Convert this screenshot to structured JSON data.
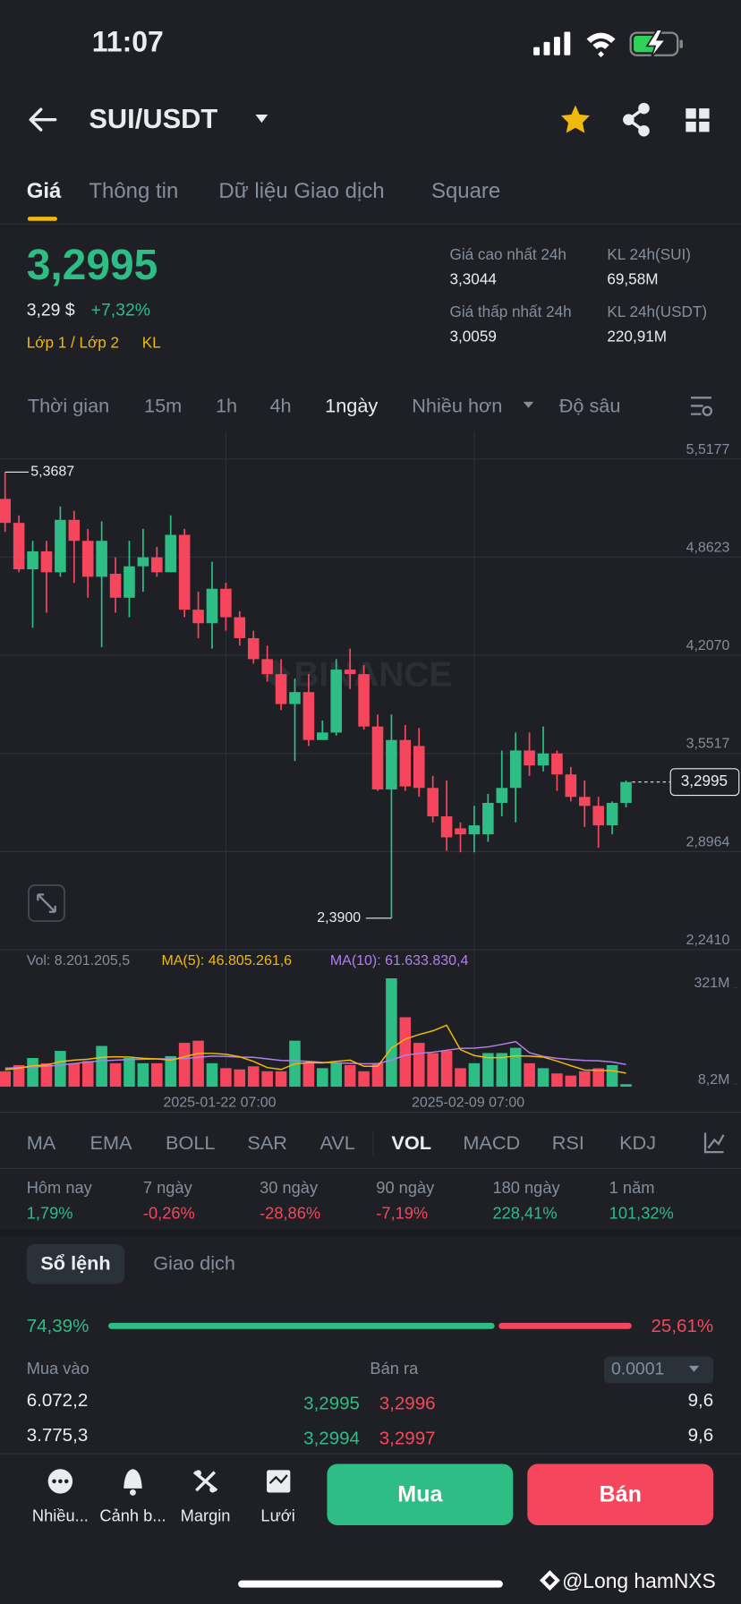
{
  "status_bar": {
    "time": "11:07"
  },
  "header": {
    "pair": "SUI/USDT"
  },
  "tabs": [
    "Giá",
    "Thông tin",
    "Dữ liệu Giao dịch",
    "Square"
  ],
  "price": {
    "last": "3,2995",
    "usd": "3,29 $",
    "change": "+7,32%",
    "tags": [
      "Lớp 1 / Lớp 2",
      "KL"
    ]
  },
  "stats": [
    {
      "label": "Giá cao nhất 24h",
      "value": "3,3044"
    },
    {
      "label": "KL 24h(SUI)",
      "value": "69,58M"
    },
    {
      "label": "Giá thấp nhất 24h",
      "value": "3,0059"
    },
    {
      "label": "KL 24h(USDT)",
      "value": "220,91M"
    }
  ],
  "intervals": [
    "Thời gian",
    "15m",
    "1h",
    "4h",
    "1ngày",
    "Nhiều hơn",
    "Độ sâu"
  ],
  "chart": {
    "type": "candlestick",
    "colors": {
      "up": "#2EBD85",
      "down": "#F6465D"
    },
    "watermark": "BINANCE",
    "open": [
      5.19,
      5.03,
      4.72,
      4.84,
      4.7,
      5.05,
      4.91,
      4.67,
      4.69,
      4.53,
      4.74,
      4.8,
      4.7,
      4.95,
      4.45,
      4.36,
      4.59,
      4.4,
      4.26,
      4.12,
      4.02,
      3.82,
      3.9,
      3.58,
      3.63,
      4.05,
      4.02,
      3.67,
      3.25,
      3.58,
      3.54,
      3.26,
      3.07,
      2.99,
      2.95,
      2.95,
      3.16,
      3.26,
      3.51,
      3.41,
      3.49,
      3.35,
      3.2,
      3.14,
      3.01,
      3.16
    ],
    "high": [
      5.3687,
      5.08,
      4.91,
      4.91,
      5.14,
      5.11,
      4.99,
      5.04,
      4.8,
      4.91,
      4.99,
      4.87,
      5.08,
      4.99,
      4.57,
      4.77,
      4.63,
      4.44,
      4.31,
      4.21,
      4.12,
      3.99,
      4.02,
      3.71,
      4.12,
      4.19,
      4.08,
      3.75,
      3.75,
      3.68,
      3.66,
      3.34,
      3.31,
      3.03,
      3.14,
      3.22,
      3.51,
      3.63,
      3.63,
      3.67,
      3.51,
      3.4,
      3.31,
      3.2,
      3.17,
      3.31
    ],
    "low": [
      4.97,
      4.7,
      4.33,
      4.43,
      4.67,
      4.63,
      4.53,
      4.2,
      4.43,
      4.4,
      4.57,
      4.67,
      4.7,
      4.4,
      4.26,
      4.19,
      4.31,
      4.21,
      4.09,
      3.97,
      3.78,
      3.44,
      3.54,
      3.58,
      3.61,
      3.92,
      3.65,
      3.24,
      2.39,
      3.24,
      3.2,
      3.03,
      2.84,
      2.83,
      2.83,
      2.9,
      3.07,
      3.03,
      3.34,
      3.37,
      3.24,
      3.17,
      3.0,
      2.86,
      2.95,
      3.13
    ],
    "close": [
      5.03,
      4.72,
      4.84,
      4.7,
      5.05,
      4.91,
      4.67,
      4.91,
      4.53,
      4.74,
      4.8,
      4.7,
      4.95,
      4.45,
      4.36,
      4.59,
      4.4,
      4.26,
      4.12,
      4.02,
      3.82,
      3.9,
      3.58,
      3.63,
      4.05,
      4.02,
      3.67,
      3.25,
      3.58,
      3.27,
      3.26,
      3.07,
      2.93,
      2.95,
      3.01,
      3.16,
      3.26,
      3.51,
      3.41,
      3.49,
      3.35,
      3.2,
      3.14,
      3.01,
      3.16,
      3.2995
    ],
    "ylim": [
      2.241,
      5.5177
    ],
    "yticks": [
      {
        "value": 5.5177,
        "label": "5,5177"
      },
      {
        "value": 4.8623,
        "label": "4,8623"
      },
      {
        "value": 4.207,
        "label": "4,2070"
      },
      {
        "value": 3.5517,
        "label": "3,5517"
      },
      {
        "value": 2.8964,
        "label": "2,8964"
      },
      {
        "value": 2.241,
        "label": "2,2410"
      }
    ],
    "xticks": [
      {
        "value": 16,
        "label": "2025-01-22 07:00"
      },
      {
        "value": 34,
        "label": "2025-02-09 07:00"
      }
    ],
    "high_label": "5,3687",
    "low_label": "2,3900",
    "last_label": "3,2995"
  },
  "volume": {
    "label": "Vol: 8.201.205,5",
    "ma5_label": "MA(5): 46.805.261,6",
    "ma10_label": "MA(10): 61.633.830,4",
    "ma5_color": "#F0B90B",
    "ma10_color": "#B37FEB",
    "values": [
      50,
      70,
      93,
      76,
      116,
      76,
      83,
      132,
      76,
      93,
      76,
      76,
      99,
      142,
      149,
      76,
      60,
      56,
      66,
      50,
      50,
      149,
      76,
      60,
      76,
      70,
      50,
      76,
      351,
      225,
      142,
      109,
      116,
      60,
      76,
      109,
      109,
      126,
      76,
      60,
      43,
      36,
      50,
      60,
      70,
      8.2
    ],
    "ma5": [
      55,
      60,
      68,
      70,
      81,
      86,
      89,
      95,
      97,
      96,
      92,
      90,
      86,
      97,
      108,
      108,
      105,
      97,
      82,
      62,
      56,
      74,
      78,
      77,
      82,
      86,
      66,
      66,
      125,
      154,
      169,
      181,
      199,
      120,
      101,
      94,
      94,
      100,
      99,
      96,
      83,
      68,
      54,
      53,
      52,
      44
    ],
    "ma10": [
      60,
      62,
      64,
      66,
      70,
      75,
      80,
      84,
      86,
      88,
      89,
      90,
      90,
      91,
      95,
      99,
      98,
      96,
      95,
      90,
      85,
      84,
      82,
      79,
      77,
      76,
      74,
      75,
      86,
      102,
      108,
      112,
      118,
      124,
      125,
      129,
      137,
      146,
      110,
      98,
      92,
      88,
      85,
      84,
      80,
      72
    ],
    "ylim": [
      0,
      351
    ],
    "yticks": [
      {
        "value": 321,
        "label": "321M"
      },
      {
        "value": 8.2,
        "label": "8,2M"
      }
    ]
  },
  "indicators": [
    "MA",
    "EMA",
    "BOLL",
    "SAR",
    "AVL",
    "VOL",
    "MACD",
    "RSI",
    "KDJ"
  ],
  "performance": [
    {
      "label": "Hôm nay",
      "value": "1,79%"
    },
    {
      "label": "7 ngày",
      "value": "-0,26%"
    },
    {
      "label": "30 ngày",
      "value": "-28,86%"
    },
    {
      "label": "90 ngày",
      "value": "-7,19%"
    },
    {
      "label": "180 ngày",
      "value": "228,41%"
    },
    {
      "label": "1 năm",
      "value": "101,32%"
    }
  ],
  "order_tabs": [
    "Sổ lệnh",
    "Giao dịch"
  ],
  "ratio": {
    "values": [
      74.39,
      25.61
    ],
    "value_labels": [
      "74,39%",
      "25,61%"
    ]
  },
  "book": {
    "buy_header": "Mua vào",
    "sell_header": "Bán ra",
    "step": "0.0001",
    "rows": [
      [
        "6.072,2",
        "3,2995",
        "3,2996",
        "9,6"
      ],
      [
        "3.775,3",
        "3,2994",
        "3,2997",
        "9,6"
      ]
    ]
  },
  "nav": [
    "Nhiều...",
    "Cảnh b...",
    "Margin",
    "Lưới"
  ],
  "actions": [
    "Mua",
    "Bán"
  ],
  "watermark": "@Long hamNXS"
}
